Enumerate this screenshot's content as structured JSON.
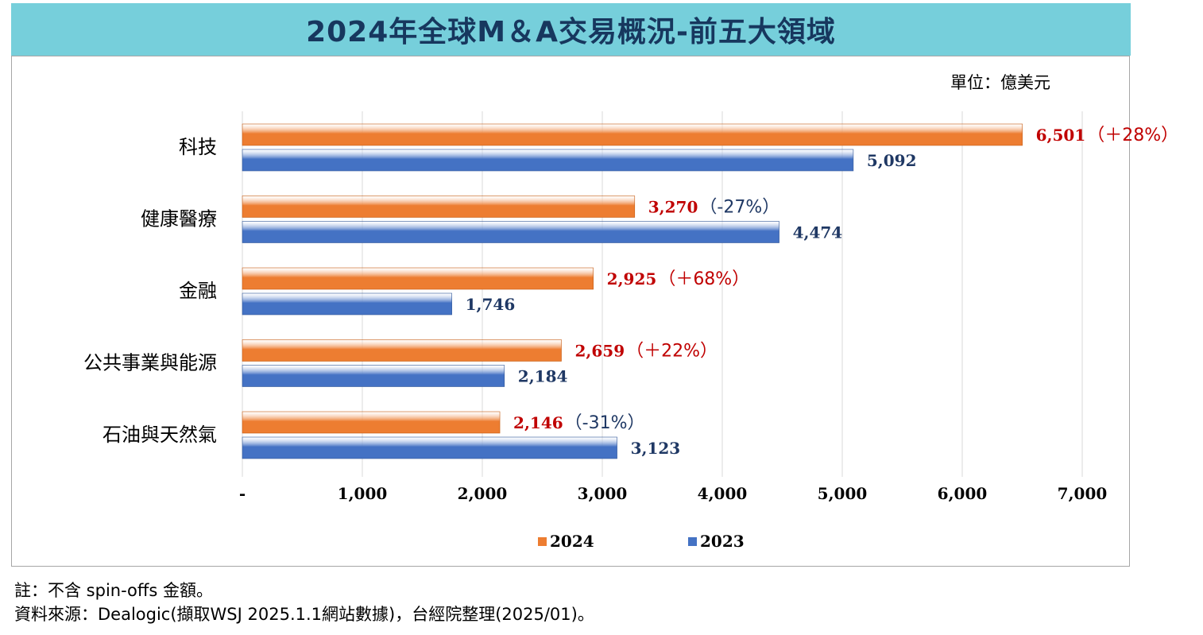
{
  "title": "2024年全球M＆A交易概況-前五大領域",
  "unit_label": "單位：億美元",
  "notes": [
    "註：不含 spin-offs 金額。",
    "資料來源：Dealogic(擷取WSJ 2025.1.1網站數據)，台經院整理(2025/01)。"
  ],
  "colors": {
    "series_2024": "#ed7d31",
    "series_2023": "#4472c4",
    "label_2024": "#c00000",
    "label_2023": "#1f3864",
    "grid": "#d9d9d9"
  },
  "chart_data": {
    "type": "bar",
    "orientation": "horizontal",
    "categories": [
      "科技",
      "健康醫療",
      "金融",
      "公共事業與能源",
      "石油與天然氣"
    ],
    "series": [
      {
        "name": "2024",
        "values": [
          6501,
          3270,
          2925,
          2659,
          2146
        ],
        "value_labels": [
          "6,501",
          "3,270",
          "2,925",
          "2,659",
          "2,146"
        ],
        "change_labels": [
          "（＋28%）",
          "（-27%）",
          "（＋68%）",
          "（＋22%）",
          "（-31%）"
        ],
        "change_sign": [
          "up",
          "down",
          "up",
          "up",
          "down"
        ]
      },
      {
        "name": "2023",
        "values": [
          5092,
          4474,
          1746,
          2184,
          3123
        ],
        "value_labels": [
          "5,092",
          "4,474",
          "1,746",
          "2,184",
          "3,123"
        ]
      }
    ],
    "x_ticks": [
      0,
      1000,
      2000,
      3000,
      4000,
      5000,
      6000,
      7000
    ],
    "x_tick_labels": [
      "-",
      "1,000",
      "2,000",
      "3,000",
      "4,000",
      "5,000",
      "6,000",
      "7,000"
    ],
    "xlim": [
      0,
      7000
    ],
    "grid": true,
    "legend_position": "bottom"
  }
}
